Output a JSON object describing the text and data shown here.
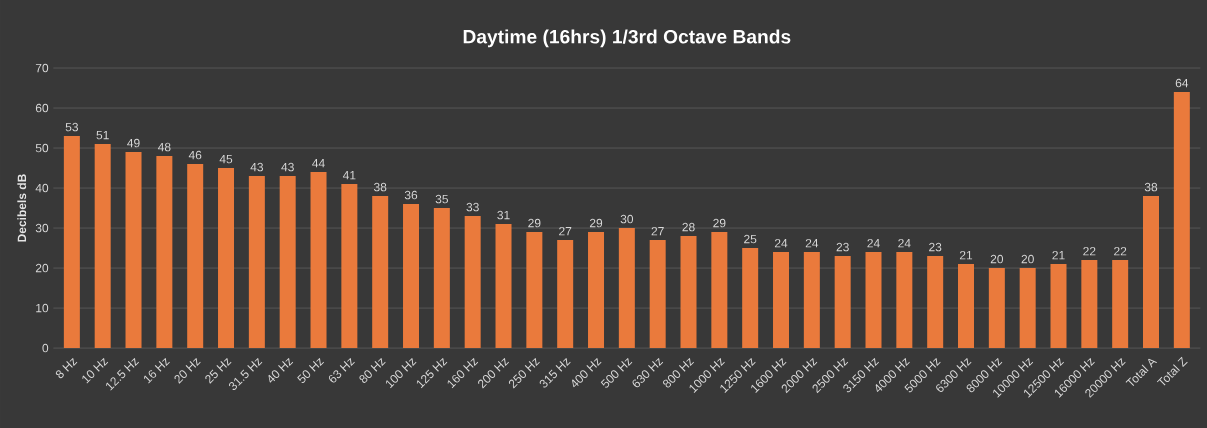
{
  "chart_data": {
    "type": "bar",
    "title": "Daytime (16hrs) 1/3rd Octave Bands",
    "ylabel": "Decibels dB",
    "categories": [
      "8 Hz",
      "10 Hz",
      "12.5 Hz",
      "16 Hz",
      "20 Hz",
      "25 Hz",
      "31.5 Hz",
      "40 Hz",
      "50 Hz",
      "63 Hz",
      "80 Hz",
      "100 Hz",
      "125 Hz",
      "160 Hz",
      "200 Hz",
      "250 Hz",
      "315 Hz",
      "400 Hz",
      "500 Hz",
      "630 Hz",
      "800 Hz",
      "1000 Hz",
      "1250 Hz",
      "1600 Hz",
      "2000 Hz",
      "2500 Hz",
      "3150 Hz",
      "4000 Hz",
      "5000 Hz",
      "6300 Hz",
      "8000 Hz",
      "10000 Hz",
      "12500 Hz",
      "16000 Hz",
      "20000 Hz",
      "Total A",
      "Total Z"
    ],
    "values": [
      53,
      51,
      49,
      48,
      46,
      45,
      43,
      43,
      44,
      41,
      38,
      36,
      35,
      33,
      31,
      29,
      27,
      29,
      30,
      27,
      28,
      29,
      25,
      24,
      24,
      23,
      24,
      24,
      23,
      21,
      20,
      20,
      21,
      22,
      22,
      38,
      64
    ],
    "color": "#ea7a3c",
    "ylim": [
      0,
      70
    ],
    "yticks": [
      0,
      10,
      20,
      30,
      40,
      50,
      60,
      70
    ],
    "grid": "y",
    "data_labels": true
  }
}
